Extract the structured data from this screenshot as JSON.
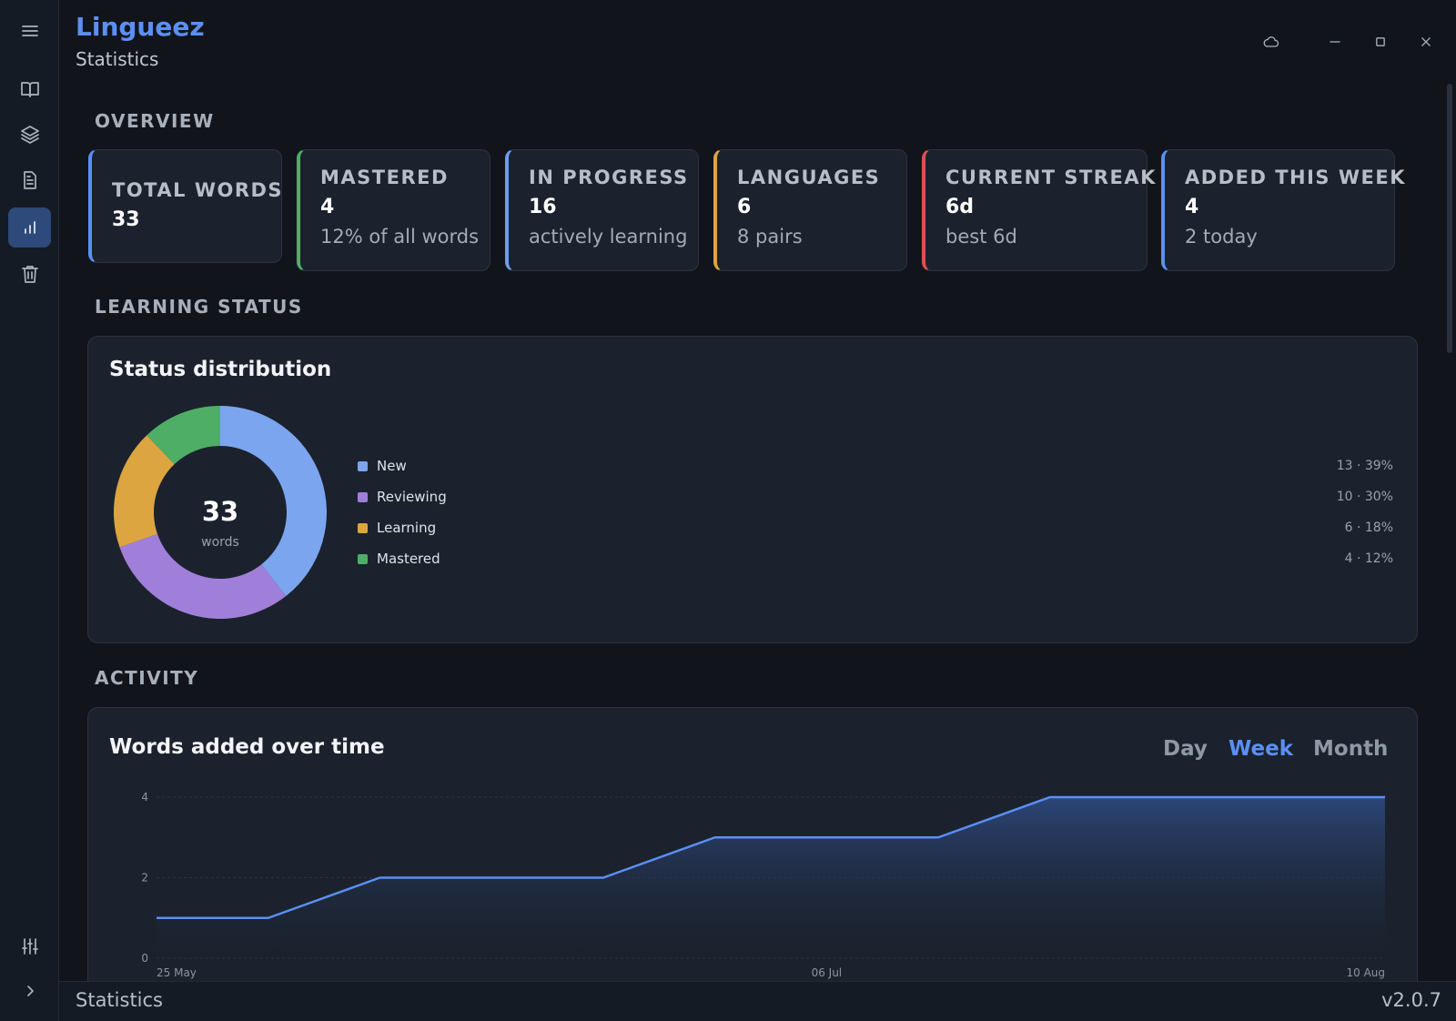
{
  "app": {
    "title": "Lingueez",
    "page": "Statistics"
  },
  "sidebar": {
    "items": [
      {
        "name": "menu-icon"
      },
      {
        "name": "book-icon"
      },
      {
        "name": "layers-icon"
      },
      {
        "name": "document-icon"
      },
      {
        "name": "chart-icon",
        "active": true
      },
      {
        "name": "trash-icon"
      },
      {
        "name": "sliders-icon"
      },
      {
        "name": "chevron-right-icon"
      }
    ]
  },
  "window_controls": [
    "cloud-icon",
    "minimize-icon",
    "maximize-icon",
    "close-icon"
  ],
  "sections": {
    "overview": "OVERVIEW",
    "learning_status": "LEARNING STATUS",
    "activity": "ACTIVITY"
  },
  "overview_cards": [
    {
      "label": "TOTAL WORDS",
      "value": "33",
      "sub": "",
      "color": "#5b8ff5"
    },
    {
      "label": "MASTERED",
      "value": "4",
      "sub": "12% of all words",
      "color": "#4caf68"
    },
    {
      "label": "IN PROGRESS",
      "value": "16",
      "sub": "actively learning",
      "color": "#6e9cf0"
    },
    {
      "label": "LANGUAGES",
      "value": "6",
      "sub": "8 pairs",
      "color": "#e0a43e"
    },
    {
      "label": "CURRENT STREAK",
      "value": "6d",
      "sub": "best 6d",
      "color": "#e05050"
    },
    {
      "label": "ADDED THIS WEEK",
      "value": "4",
      "sub": "2 today",
      "color": "#5b8ff5"
    }
  ],
  "status_panel": {
    "title": "Status distribution",
    "center_value": "33",
    "center_label": "words",
    "legend": [
      {
        "label": "New",
        "count": "13 · 39%",
        "color": "#7ba5ee"
      },
      {
        "label": "Reviewing",
        "count": "10 · 30%",
        "color": "#a07fdb"
      },
      {
        "label": "Learning",
        "count": "6 · 18%",
        "color": "#dda540"
      },
      {
        "label": "Mastered",
        "count": "4 · 12%",
        "color": "#4fae66"
      }
    ]
  },
  "activity_panel": {
    "title": "Words added over time",
    "tabs": [
      "Day",
      "Week",
      "Month"
    ],
    "active_tab": "Week"
  },
  "chart_data": [
    {
      "type": "pie",
      "title": "Status distribution",
      "categories": [
        "New",
        "Reviewing",
        "Learning",
        "Mastered"
      ],
      "values": [
        13,
        10,
        6,
        4
      ],
      "colors": [
        "#7ba5ee",
        "#a07fdb",
        "#dda540",
        "#4fae66"
      ]
    },
    {
      "type": "area",
      "title": "Words added over time",
      "x": [
        "25 May",
        "01 Jun",
        "08 Jun",
        "15 Jun",
        "22 Jun",
        "29 Jun",
        "06 Jul",
        "13 Jul",
        "20 Jul",
        "27 Jul",
        "03 Aug",
        "10 Aug"
      ],
      "values": [
        1,
        1,
        2,
        2,
        2,
        3,
        3,
        3,
        4,
        4,
        4,
        4
      ],
      "ylim": [
        0,
        4
      ],
      "yticks": [
        "0",
        "2",
        "4"
      ],
      "xtick_labels": [
        "25 May",
        "06 Jul",
        "10 Aug"
      ],
      "color": "#5b8ff5"
    }
  ],
  "statusbar": {
    "left": "Statistics",
    "right": "v2.0.7"
  }
}
